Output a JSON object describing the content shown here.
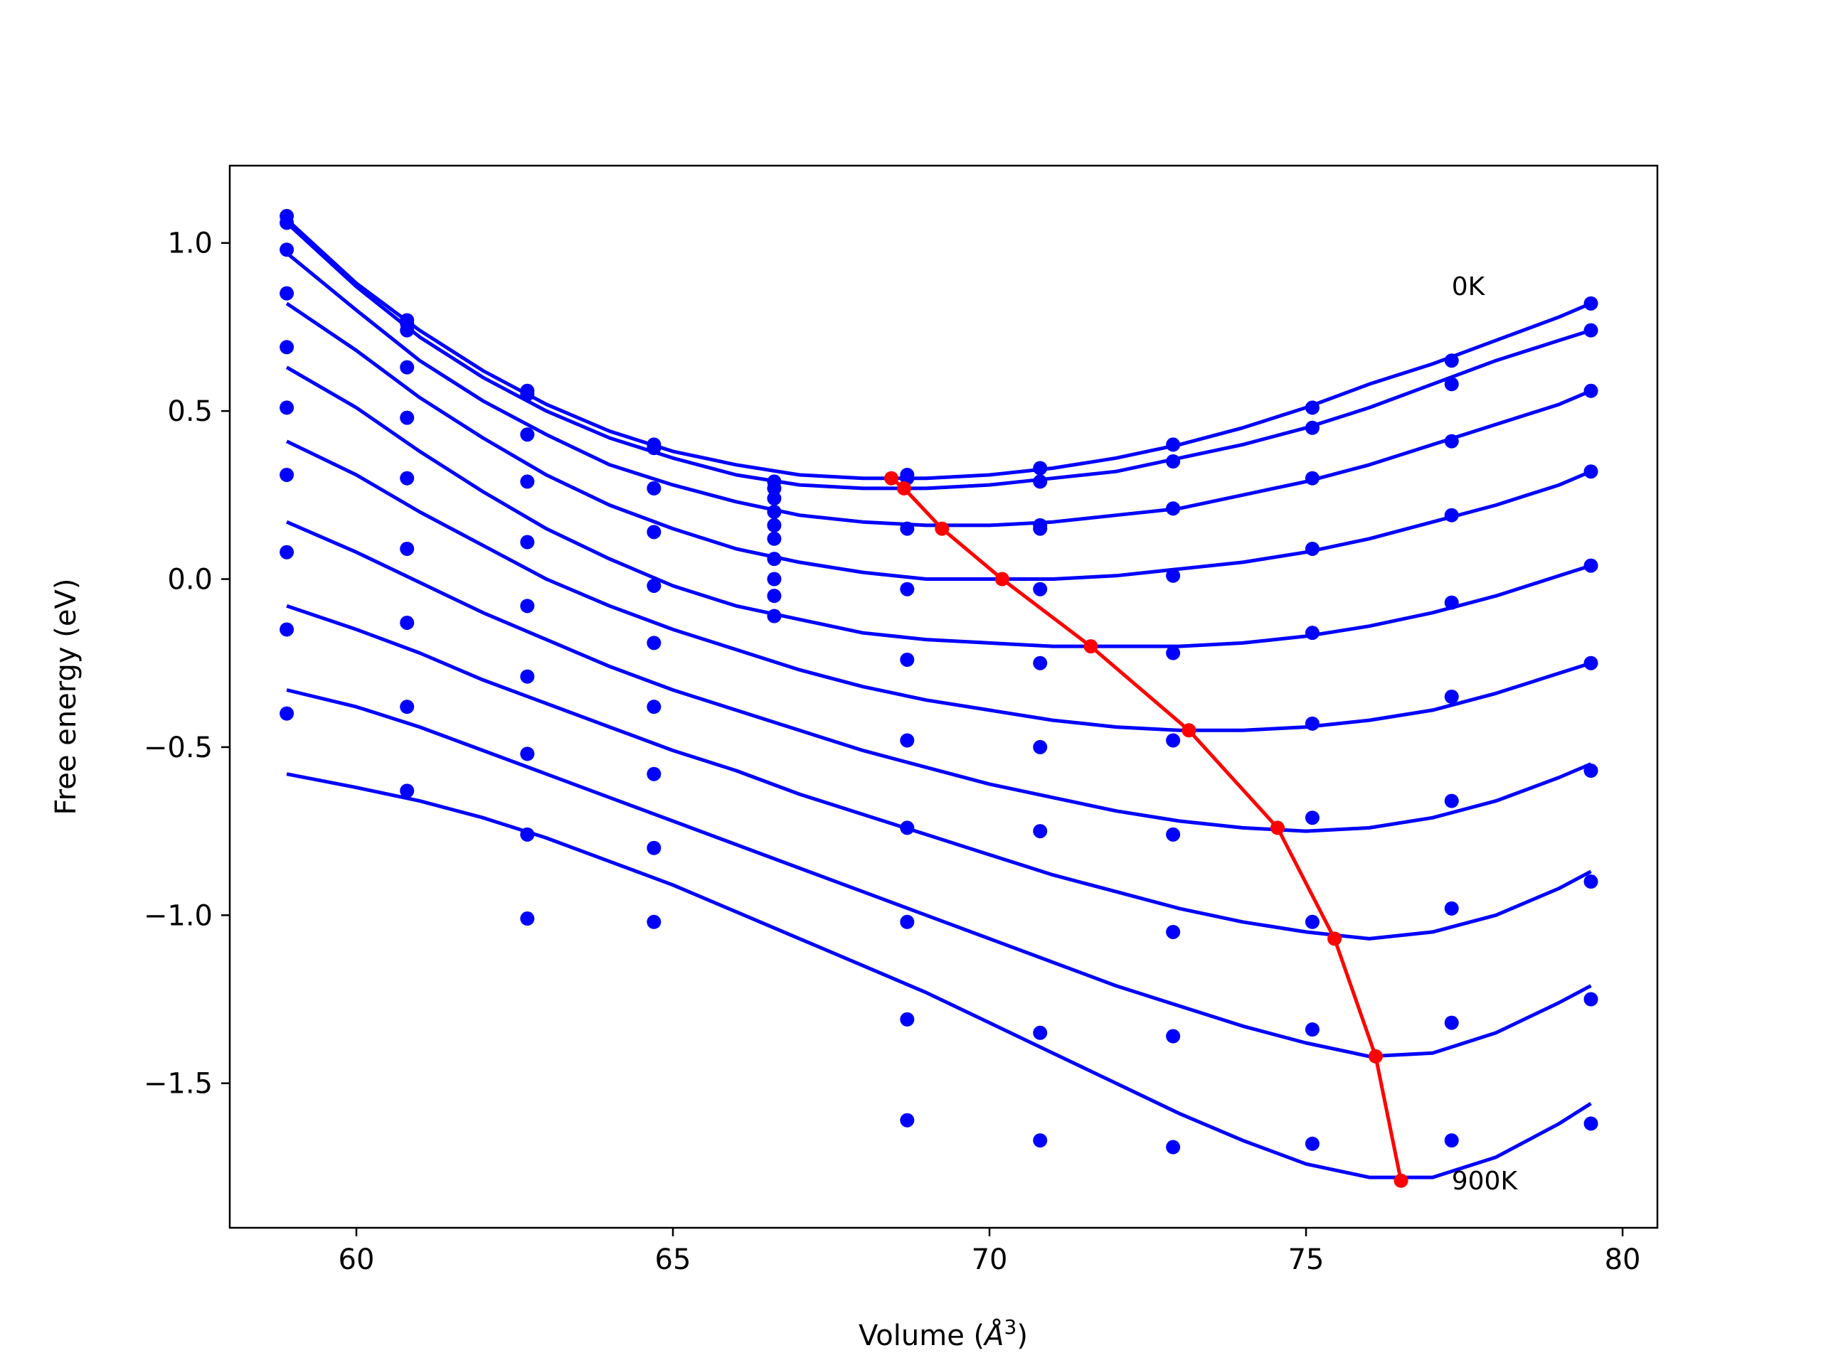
{
  "chart_data": {
    "type": "line",
    "xlabel_main": "Volume (",
    "xlabel_unit": "Å",
    "xlabel_exp": "3",
    "xlabel_close": ")",
    "ylabel": "Free energy (eV)",
    "xlim": [
      58.0,
      80.55
    ],
    "ylim": [
      -1.93,
      1.23
    ],
    "xticks": [
      60,
      65,
      70,
      75,
      80
    ],
    "yticks": [
      1.0,
      0.5,
      0.0,
      -0.5,
      -1.0,
      -1.5
    ],
    "xtick_labels": [
      "60",
      "65",
      "70",
      "75",
      "80"
    ],
    "ytick_labels": [
      "1.0",
      "0.5",
      "0.0",
      "−0.5",
      "−1.0",
      "−1.5"
    ],
    "grid": false,
    "annotations": [
      {
        "text": "0K",
        "x": 77.3,
        "y": 0.87
      },
      {
        "text": "900K",
        "x": 77.3,
        "y": -1.79
      }
    ],
    "colors": {
      "fit_curves": "#0000ff",
      "data_points": "#0000ff",
      "minimum_path": "#ff0000"
    },
    "series": [
      {
        "fit_x": [
          58.9,
          60.0,
          61.0,
          62.0,
          63.0,
          64.0,
          65.0,
          66.0,
          67.0,
          68.0,
          69.0,
          70.0,
          71.0,
          72.0,
          73.0,
          74.0,
          75.0,
          76.0,
          77.0,
          78.0,
          79.0,
          79.5
        ],
        "fit_y": [
          1.07,
          0.88,
          0.74,
          0.62,
          0.52,
          0.44,
          0.38,
          0.34,
          0.31,
          0.3,
          0.3,
          0.31,
          0.33,
          0.36,
          0.4,
          0.45,
          0.51,
          0.58,
          0.64,
          0.71,
          0.78,
          0.82
        ],
        "points_x": [
          58.9,
          60.8,
          62.7,
          64.7,
          66.6,
          68.7,
          70.8,
          72.9,
          75.1,
          77.3,
          79.5
        ],
        "points_y": [
          1.08,
          0.77,
          0.56,
          0.4,
          0.29,
          0.31,
          0.33,
          0.4,
          0.51,
          0.65,
          0.82
        ]
      },
      {
        "fit_x": [
          58.9,
          60.0,
          61.0,
          62.0,
          63.0,
          64.0,
          65.0,
          66.0,
          67.0,
          68.0,
          69.0,
          70.0,
          71.0,
          72.0,
          73.0,
          74.0,
          75.0,
          76.0,
          77.0,
          78.0,
          79.0,
          79.5
        ],
        "fit_y": [
          1.06,
          0.87,
          0.72,
          0.6,
          0.5,
          0.42,
          0.36,
          0.31,
          0.28,
          0.27,
          0.27,
          0.28,
          0.3,
          0.32,
          0.36,
          0.4,
          0.45,
          0.51,
          0.58,
          0.65,
          0.71,
          0.74
        ],
        "points_x": [
          58.9,
          60.8,
          62.7,
          64.7,
          66.6,
          68.7,
          70.8,
          72.9,
          75.1,
          77.3,
          79.5
        ],
        "points_y": [
          1.06,
          0.76,
          0.55,
          0.39,
          0.27,
          0.3,
          0.29,
          0.35,
          0.45,
          0.58,
          0.74
        ]
      },
      {
        "fit_x": [
          58.9,
          60.0,
          61.0,
          62.0,
          63.0,
          64.0,
          65.0,
          66.0,
          67.0,
          68.0,
          69.0,
          70.0,
          71.0,
          72.0,
          73.0,
          74.0,
          75.0,
          76.0,
          77.0,
          78.0,
          79.0,
          79.5
        ],
        "fit_y": [
          0.97,
          0.8,
          0.65,
          0.53,
          0.43,
          0.34,
          0.28,
          0.23,
          0.19,
          0.17,
          0.16,
          0.16,
          0.17,
          0.19,
          0.21,
          0.25,
          0.29,
          0.34,
          0.4,
          0.46,
          0.52,
          0.56
        ],
        "points_x": [
          58.9,
          60.8,
          62.7,
          64.7,
          66.6,
          68.7,
          70.8,
          72.9,
          75.1,
          77.3,
          79.5
        ],
        "points_y": [
          0.98,
          0.74,
          0.43,
          0.27,
          0.24,
          0.15,
          0.16,
          0.21,
          0.3,
          0.41,
          0.56
        ]
      },
      {
        "fit_x": [
          58.9,
          60.0,
          61.0,
          62.0,
          63.0,
          64.0,
          65.0,
          66.0,
          67.0,
          68.0,
          69.0,
          70.0,
          71.0,
          72.0,
          73.0,
          74.0,
          75.0,
          76.0,
          77.0,
          78.0,
          79.0,
          79.5
        ],
        "fit_y": [
          0.82,
          0.68,
          0.54,
          0.42,
          0.31,
          0.22,
          0.15,
          0.09,
          0.05,
          0.02,
          0.0,
          0.0,
          0.0,
          0.01,
          0.03,
          0.05,
          0.08,
          0.12,
          0.17,
          0.22,
          0.28,
          0.32
        ],
        "points_x": [
          58.9,
          60.8,
          62.7,
          64.7,
          66.6,
          68.7,
          70.8,
          72.9,
          75.1,
          77.3,
          79.5
        ],
        "points_y": [
          0.85,
          0.63,
          0.29,
          0.14,
          0.2,
          -0.03,
          0.15,
          0.01,
          0.09,
          0.19,
          0.32
        ]
      },
      {
        "fit_x": [
          58.9,
          60.0,
          61.0,
          62.0,
          63.0,
          64.0,
          65.0,
          66.0,
          67.0,
          68.0,
          69.0,
          70.0,
          71.0,
          72.0,
          73.0,
          74.0,
          75.0,
          76.0,
          77.0,
          78.0,
          79.0,
          79.5
        ],
        "fit_y": [
          0.63,
          0.51,
          0.38,
          0.26,
          0.15,
          0.06,
          -0.02,
          -0.08,
          -0.12,
          -0.16,
          -0.18,
          -0.19,
          -0.2,
          -0.2,
          -0.2,
          -0.19,
          -0.17,
          -0.14,
          -0.1,
          -0.05,
          0.01,
          0.04
        ],
        "points_x": [
          58.9,
          60.8,
          62.7,
          64.7,
          66.6,
          68.7,
          70.8,
          72.9,
          75.1,
          77.3,
          79.5
        ],
        "points_y": [
          0.69,
          0.48,
          0.11,
          -0.02,
          0.16,
          -0.24,
          -0.03,
          -0.22,
          -0.16,
          -0.07,
          0.04
        ]
      },
      {
        "fit_x": [
          58.9,
          60.0,
          61.0,
          62.0,
          63.0,
          64.0,
          65.0,
          66.0,
          67.0,
          68.0,
          69.0,
          70.0,
          71.0,
          72.0,
          73.0,
          74.0,
          75.0,
          76.0,
          77.0,
          78.0,
          79.0,
          79.5
        ],
        "fit_y": [
          0.41,
          0.31,
          0.2,
          0.1,
          0.0,
          -0.08,
          -0.15,
          -0.21,
          -0.27,
          -0.32,
          -0.36,
          -0.39,
          -0.42,
          -0.44,
          -0.45,
          -0.45,
          -0.44,
          -0.42,
          -0.39,
          -0.34,
          -0.28,
          -0.25
        ],
        "points_x": [
          58.9,
          60.8,
          62.7,
          64.7,
          66.6,
          68.7,
          70.8,
          72.9,
          75.1,
          77.3,
          79.5
        ],
        "points_y": [
          0.51,
          0.3,
          -0.08,
          -0.19,
          0.12,
          -0.48,
          -0.25,
          -0.48,
          -0.43,
          -0.35,
          -0.25
        ]
      },
      {
        "fit_x": [
          58.9,
          60.0,
          61.0,
          62.0,
          63.0,
          64.0,
          65.0,
          66.0,
          67.0,
          68.0,
          69.0,
          70.0,
          71.0,
          72.0,
          73.0,
          74.0,
          75.0,
          76.0,
          77.0,
          78.0,
          79.0,
          79.5
        ],
        "fit_y": [
          0.17,
          0.08,
          -0.01,
          -0.1,
          -0.18,
          -0.26,
          -0.33,
          -0.39,
          -0.45,
          -0.51,
          -0.56,
          -0.61,
          -0.65,
          -0.69,
          -0.72,
          -0.74,
          -0.75,
          -0.74,
          -0.71,
          -0.66,
          -0.59,
          -0.55
        ],
        "points_x": [
          58.9,
          60.8,
          62.7,
          64.7,
          66.6,
          68.7,
          70.8,
          72.9,
          75.1,
          77.3,
          79.5
        ],
        "points_y": [
          0.31,
          0.09,
          -0.29,
          -0.38,
          0.06,
          -0.74,
          -0.5,
          -0.76,
          -0.71,
          -0.66,
          -0.57
        ]
      },
      {
        "fit_x": [
          58.9,
          60.0,
          61.0,
          62.0,
          63.0,
          64.0,
          65.0,
          66.0,
          67.0,
          68.0,
          69.0,
          70.0,
          71.0,
          72.0,
          73.0,
          74.0,
          75.0,
          76.0,
          77.0,
          78.0,
          79.0,
          79.5
        ],
        "fit_y": [
          -0.08,
          -0.15,
          -0.22,
          -0.3,
          -0.37,
          -0.44,
          -0.51,
          -0.57,
          -0.64,
          -0.7,
          -0.76,
          -0.82,
          -0.88,
          -0.93,
          -0.98,
          -1.02,
          -1.05,
          -1.07,
          -1.05,
          -1.0,
          -0.92,
          -0.87
        ],
        "points_x": [
          58.9,
          60.8,
          62.7,
          64.7,
          66.6,
          68.7,
          70.8,
          72.9,
          75.1,
          77.3,
          79.5
        ],
        "points_y": [
          0.08,
          -0.13,
          -0.52,
          -0.58,
          0.0,
          -1.02,
          -0.75,
          -1.05,
          -1.02,
          -0.98,
          -0.9
        ]
      },
      {
        "fit_x": [
          58.9,
          60.0,
          61.0,
          62.0,
          63.0,
          64.0,
          65.0,
          66.0,
          67.0,
          68.0,
          69.0,
          70.0,
          71.0,
          72.0,
          73.0,
          74.0,
          75.0,
          76.0,
          77.0,
          78.0,
          79.0,
          79.5
        ],
        "fit_y": [
          -0.33,
          -0.38,
          -0.44,
          -0.51,
          -0.58,
          -0.65,
          -0.72,
          -0.79,
          -0.86,
          -0.93,
          -1.0,
          -1.07,
          -1.14,
          -1.21,
          -1.27,
          -1.33,
          -1.38,
          -1.42,
          -1.41,
          -1.35,
          -1.26,
          -1.21
        ],
        "points_x": [
          58.9,
          60.8,
          62.7,
          64.7,
          66.6,
          68.7,
          70.8,
          72.9,
          75.1,
          77.3,
          79.5
        ],
        "points_y": [
          -0.15,
          -0.38,
          -0.76,
          -0.8,
          -0.05,
          -1.31,
          -1.35,
          -1.36,
          -1.34,
          -1.32,
          -1.25
        ]
      },
      {
        "fit_x": [
          58.9,
          60.0,
          61.0,
          62.0,
          63.0,
          64.0,
          65.0,
          66.0,
          67.0,
          68.0,
          69.0,
          70.0,
          71.0,
          72.0,
          73.0,
          74.0,
          75.0,
          76.0,
          77.0,
          78.0,
          79.0,
          79.5
        ],
        "fit_y": [
          -0.58,
          -0.62,
          -0.66,
          -0.71,
          -0.77,
          -0.84,
          -0.91,
          -0.99,
          -1.07,
          -1.15,
          -1.23,
          -1.32,
          -1.41,
          -1.5,
          -1.59,
          -1.67,
          -1.74,
          -1.78,
          -1.78,
          -1.72,
          -1.62,
          -1.56
        ],
        "points_x": [
          58.9,
          60.8,
          62.7,
          64.7,
          66.6,
          68.7,
          70.8,
          72.9,
          75.1,
          77.3,
          79.5
        ],
        "points_y": [
          -0.4,
          -0.63,
          -1.01,
          -1.02,
          -0.11,
          -1.61,
          -1.67,
          -1.69,
          -1.68,
          -1.67,
          -1.62
        ]
      }
    ],
    "minimum_path": {
      "x": [
        68.45,
        68.65,
        69.25,
        70.2,
        71.6,
        73.15,
        74.55,
        75.45,
        76.1,
        76.5
      ],
      "y": [
        0.3,
        0.27,
        0.15,
        0.0,
        -0.2,
        -0.45,
        -0.74,
        -1.07,
        -1.42,
        -1.79
      ]
    }
  }
}
